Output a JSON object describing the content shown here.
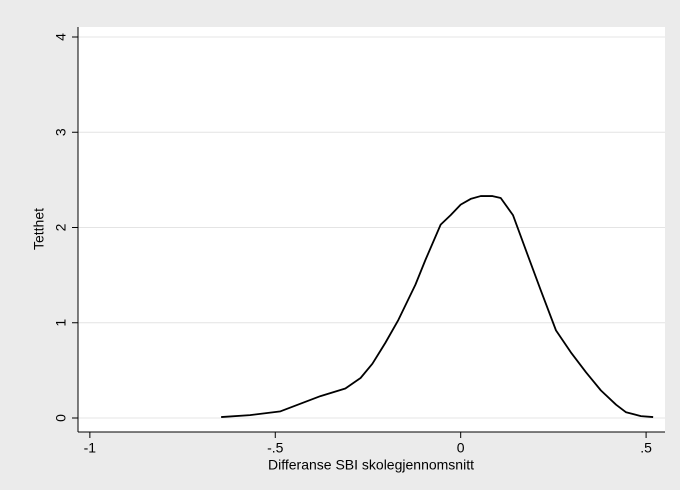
{
  "chart_data": {
    "type": "line",
    "x_label": "Differanse SBI skolegjennomsnitt",
    "y_label": "Tetthet",
    "x": [
      -0.646,
      -0.568,
      -0.486,
      -0.432,
      -0.378,
      -0.311,
      -0.27,
      -0.238,
      -0.203,
      -0.168,
      -0.122,
      -0.095,
      -0.054,
      -0.027,
      0,
      0.027,
      0.054,
      0.086,
      0.108,
      0.141,
      0.176,
      0.216,
      0.257,
      0.297,
      0.338,
      0.378,
      0.419,
      0.446,
      0.486,
      0.519
    ],
    "series": [
      {
        "color": "#000000",
        "values": [
          0.01,
          0.03,
          0.07,
          0.15,
          0.23,
          0.31,
          0.42,
          0.57,
          0.79,
          1.03,
          1.4,
          1.66,
          2.03,
          2.13,
          2.24,
          2.3,
          2.33,
          2.33,
          2.31,
          2.13,
          1.76,
          1.34,
          0.92,
          0.69,
          0.48,
          0.29,
          0.14,
          0.06,
          0.02,
          0.01
        ]
      }
    ],
    "xlim": [
      -1.032,
      0.551
    ],
    "ylim": [
      -0.147,
      4.105
    ],
    "xticks": [
      -1,
      {
        "value": -0.5,
        "label": "-.5"
      },
      0,
      {
        "value": 0.5,
        "label": ".5"
      }
    ],
    "yticks": [
      0,
      1,
      2,
      3,
      4
    ],
    "grid": true
  }
}
